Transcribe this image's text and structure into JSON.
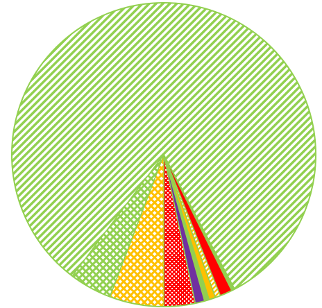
{
  "chart_data": {
    "type": "pie",
    "start_angle_deg": 127,
    "direction": "clockwise",
    "border_color": "#92D050",
    "slices": [
      {
        "value": 82.0,
        "color": "#92D050",
        "pattern": "diagonal-stripes"
      },
      {
        "value": 0.35,
        "color": "#92D050",
        "pattern": "solid"
      },
      {
        "value": 1.3,
        "color": "#FF0000",
        "pattern": "solid"
      },
      {
        "value": 0.55,
        "color": "#FFC000",
        "pattern": "diagonal-stripes"
      },
      {
        "value": 0.7,
        "color": "#FFC000",
        "pattern": "solid"
      },
      {
        "value": 0.5,
        "color": "#92D050",
        "pattern": "solid"
      },
      {
        "value": 1.0,
        "color": "#7030A0",
        "pattern": "solid"
      },
      {
        "value": 3.3,
        "color": "#FF0000",
        "pattern": "cross-dots"
      },
      {
        "value": 5.8,
        "color": "#FFC000",
        "pattern": "grid"
      },
      {
        "value": 4.5,
        "color": "#92D050",
        "pattern": "grid"
      }
    ]
  }
}
